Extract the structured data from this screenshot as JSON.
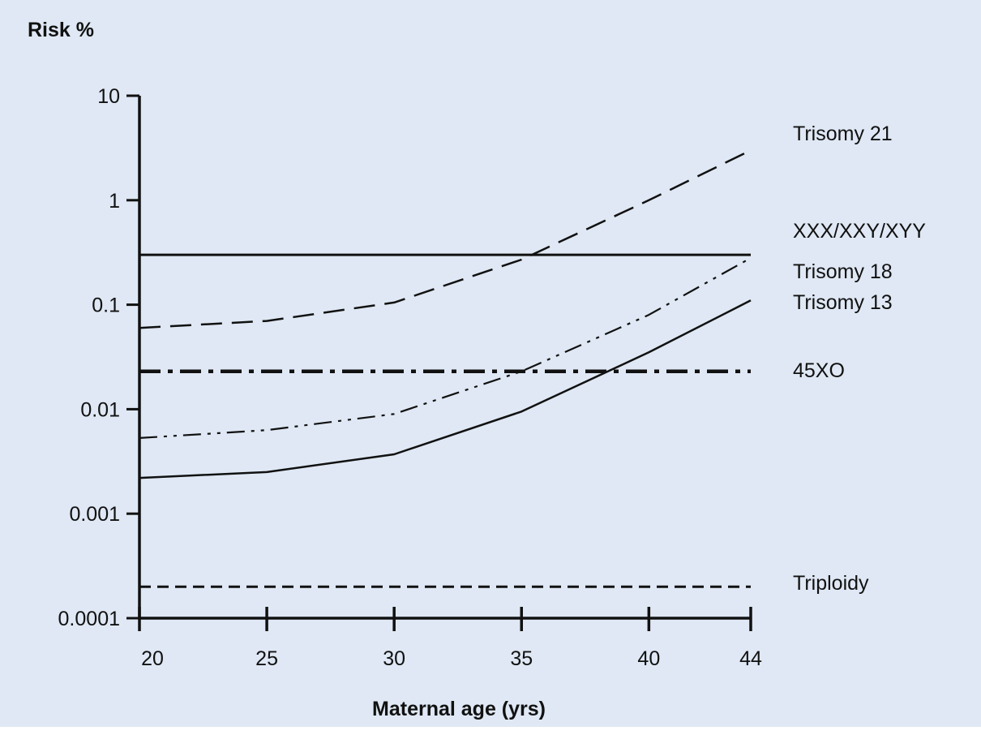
{
  "colors": {
    "background": "#dfe8f4",
    "ink": "#111111"
  },
  "chart_data": {
    "type": "line",
    "title": "",
    "xlabel": "Maternal age (yrs)",
    "ylabel": "Risk %",
    "yscale": "log",
    "xlim": [
      20,
      44
    ],
    "ylim": [
      0.0001,
      10
    ],
    "x_ticks": [
      20,
      25,
      30,
      35,
      40,
      44
    ],
    "x_tick_labels": [
      "20",
      "25",
      "30",
      "35",
      "40",
      "44"
    ],
    "y_ticks": [
      10,
      1,
      0.1,
      0.01,
      0.001,
      0.0001
    ],
    "y_tick_labels": [
      "10",
      "1",
      "0.1",
      "0.01",
      "0.001",
      "0.0001"
    ],
    "grid": false,
    "legend": "labels at right end of each line",
    "x": [
      20,
      25,
      30,
      35,
      40,
      44
    ],
    "series": [
      {
        "name": "Trisomy 21",
        "line_style": "long-dash",
        "values": [
          0.06,
          0.07,
          0.105,
          0.27,
          1.0,
          3.0
        ]
      },
      {
        "name": "XXX/XXY/XYY",
        "line_style": "solid-bold",
        "values": [
          0.3,
          0.3,
          0.3,
          0.3,
          0.3,
          0.3
        ]
      },
      {
        "name": "Trisomy 18",
        "line_style": "dash-dot-dot",
        "values": [
          0.0053,
          0.0063,
          0.009,
          0.023,
          0.08,
          0.28
        ]
      },
      {
        "name": "Trisomy 13",
        "line_style": "solid",
        "values": [
          0.0022,
          0.0025,
          0.0037,
          0.0095,
          0.035,
          0.11
        ]
      },
      {
        "name": "45XO",
        "line_style": "bold-dash-dot",
        "values": [
          0.023,
          0.023,
          0.023,
          0.023,
          0.023,
          0.023
        ]
      },
      {
        "name": "Triploidy",
        "line_style": "short-dash",
        "values": [
          0.0002,
          0.0002,
          0.0002,
          0.0002,
          0.0002,
          0.0002
        ]
      }
    ]
  }
}
